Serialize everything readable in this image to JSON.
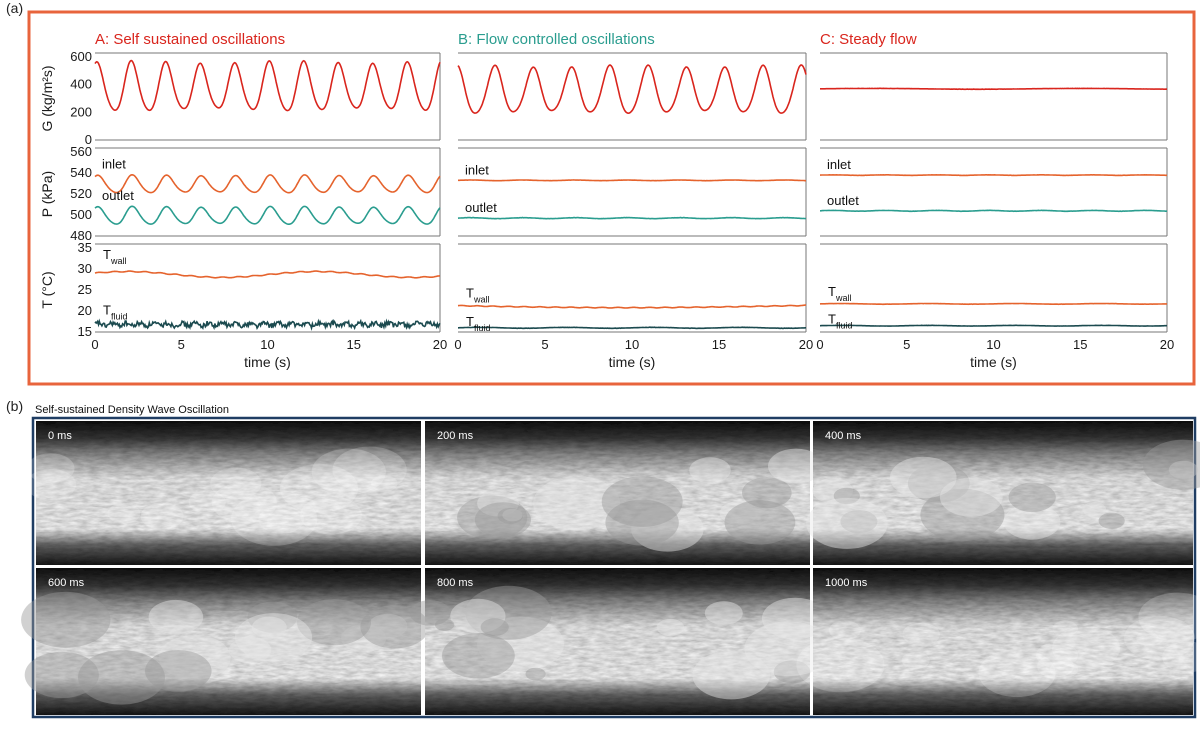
{
  "figure": {
    "part_a_label": "(a)",
    "part_b_label": "(b)"
  },
  "colors": {
    "frame": "#e8643c",
    "frame_b": "#1f3d63",
    "red": "#d9251d",
    "orange": "#e5632d",
    "teal": "#2a9d8f",
    "dark": "#1b4a4f",
    "title_a": "#d9251d",
    "title_b": "#2a9d8f",
    "title_c": "#d9251d"
  },
  "y_axis_labels": {
    "G": "G  (kg/m²s)",
    "P": "P  (kPa)",
    "T": "T (°C)"
  },
  "x_axis_label": "time (s)",
  "curve_labels": {
    "inlet": "inlet",
    "outlet": "outlet",
    "twall_main": "T",
    "twall_sub": "wall",
    "tfluid_main": "T",
    "tfluid_sub": "fluid"
  },
  "chart_data": [
    {
      "type": "line",
      "title": "A: Self sustained oscillations",
      "xlabel": "time (s)",
      "xlim": [
        0,
        20
      ],
      "x_ticks": [
        "0",
        "5",
        "10",
        "15",
        "20"
      ],
      "panels": [
        {
          "quantity": "G",
          "ylabel": "G  (kg/m²s)",
          "ylim": [
            0,
            600
          ],
          "y_ticks": [
            "600",
            "400",
            "200",
            "0"
          ],
          "series": [
            {
              "kind": "oscillation",
              "color": "red",
              "mean": 375,
              "amplitude": 170,
              "period_s": 2.0,
              "phase": 1.2
            }
          ]
        },
        {
          "quantity": "P",
          "ylabel": "P  (kPa)",
          "ylim": [
            480,
            560
          ],
          "y_ticks": [
            "560",
            "540",
            "520",
            "500",
            "480"
          ],
          "series": [
            {
              "name": "inlet",
              "kind": "oscillation",
              "color": "orange",
              "mean": 529,
              "amplitude": 8,
              "period_s": 2.0,
              "phase": 1.0
            },
            {
              "name": "outlet",
              "kind": "oscillation",
              "color": "teal",
              "mean": 499,
              "amplitude": 8,
              "period_s": 2.0,
              "phase": 1.0
            }
          ]
        },
        {
          "quantity": "T",
          "ylabel": "T (°C)",
          "ylim": [
            15,
            35
          ],
          "y_ticks": [
            "35",
            "30",
            "25",
            "20",
            "15"
          ],
          "series": [
            {
              "name": "Twall",
              "kind": "slow",
              "color": "orange",
              "mean": 28.7,
              "amplitude": 0.7,
              "period_s": 11,
              "phase": 0.5
            },
            {
              "name": "Tfluid",
              "kind": "noisy",
              "color": "dark",
              "mean": 16.8,
              "amplitude": 0.8,
              "period_s": 0.8,
              "phase": 0
            }
          ]
        }
      ]
    },
    {
      "type": "line",
      "title": "B:  Flow controlled oscillations",
      "xlabel": "time (s)",
      "xlim": [
        0,
        20
      ],
      "x_ticks": [
        "0",
        "5",
        "10",
        "15",
        "20"
      ],
      "panels": [
        {
          "quantity": "G",
          "ylim": [
            0,
            600
          ],
          "series": [
            {
              "kind": "oscillation",
              "color": "red",
              "mean": 350,
              "amplitude": 165,
              "period_s": 2.2,
              "phase": 1.8
            }
          ]
        },
        {
          "quantity": "P",
          "ylim": [
            480,
            560
          ],
          "series": [
            {
              "name": "inlet",
              "kind": "flat",
              "color": "orange",
              "mean": 533,
              "amplitude": 0.4,
              "period_s": 3,
              "phase": 0
            },
            {
              "name": "outlet",
              "kind": "flat",
              "color": "teal",
              "mean": 497,
              "amplitude": 0.6,
              "period_s": 3,
              "phase": 0
            }
          ]
        },
        {
          "quantity": "T",
          "ylim": [
            15,
            35
          ],
          "series": [
            {
              "name": "Twall",
              "kind": "slow",
              "color": "orange",
              "mean": 21.3,
              "amplitude": 0.5,
              "period_s": 40,
              "phase": 3.2
            },
            {
              "name": "Tfluid",
              "kind": "flat",
              "color": "dark",
              "mean": 16.0,
              "amplitude": 0.15,
              "period_s": 5,
              "phase": 0
            }
          ]
        }
      ]
    },
    {
      "type": "line",
      "title": "C:  Steady flow",
      "xlabel": "time (s)",
      "xlim": [
        0,
        20
      ],
      "x_ticks": [
        "0",
        "5",
        "10",
        "15",
        "20"
      ],
      "panels": [
        {
          "quantity": "G",
          "ylim": [
            0,
            600
          ],
          "series": [
            {
              "kind": "flat",
              "color": "red",
              "mean": 370,
              "amplitude": 4,
              "period_s": 12,
              "phase": 0
            }
          ]
        },
        {
          "quantity": "P",
          "ylim": [
            480,
            560
          ],
          "series": [
            {
              "name": "inlet",
              "kind": "flat",
              "color": "orange",
              "mean": 538,
              "amplitude": 0.3,
              "period_s": 3,
              "phase": 0
            },
            {
              "name": "outlet",
              "kind": "flat",
              "color": "teal",
              "mean": 504,
              "amplitude": 0.5,
              "period_s": 3,
              "phase": 0
            }
          ]
        },
        {
          "quantity": "T",
          "ylim": [
            15,
            35
          ],
          "series": [
            {
              "name": "Twall",
              "kind": "flat",
              "color": "orange",
              "mean": 21.7,
              "amplitude": 0.1,
              "period_s": 5,
              "phase": 0
            },
            {
              "name": "Tfluid",
              "kind": "flat",
              "color": "dark",
              "mean": 16.5,
              "amplitude": 0.1,
              "period_s": 5,
              "phase": 0
            }
          ]
        }
      ]
    }
  ],
  "snapshots": {
    "title": "Self-sustained Density Wave Oscillation",
    "frames": [
      "0 ms",
      "200 ms",
      "400 ms",
      "600 ms",
      "800 ms",
      "1000 ms"
    ]
  }
}
